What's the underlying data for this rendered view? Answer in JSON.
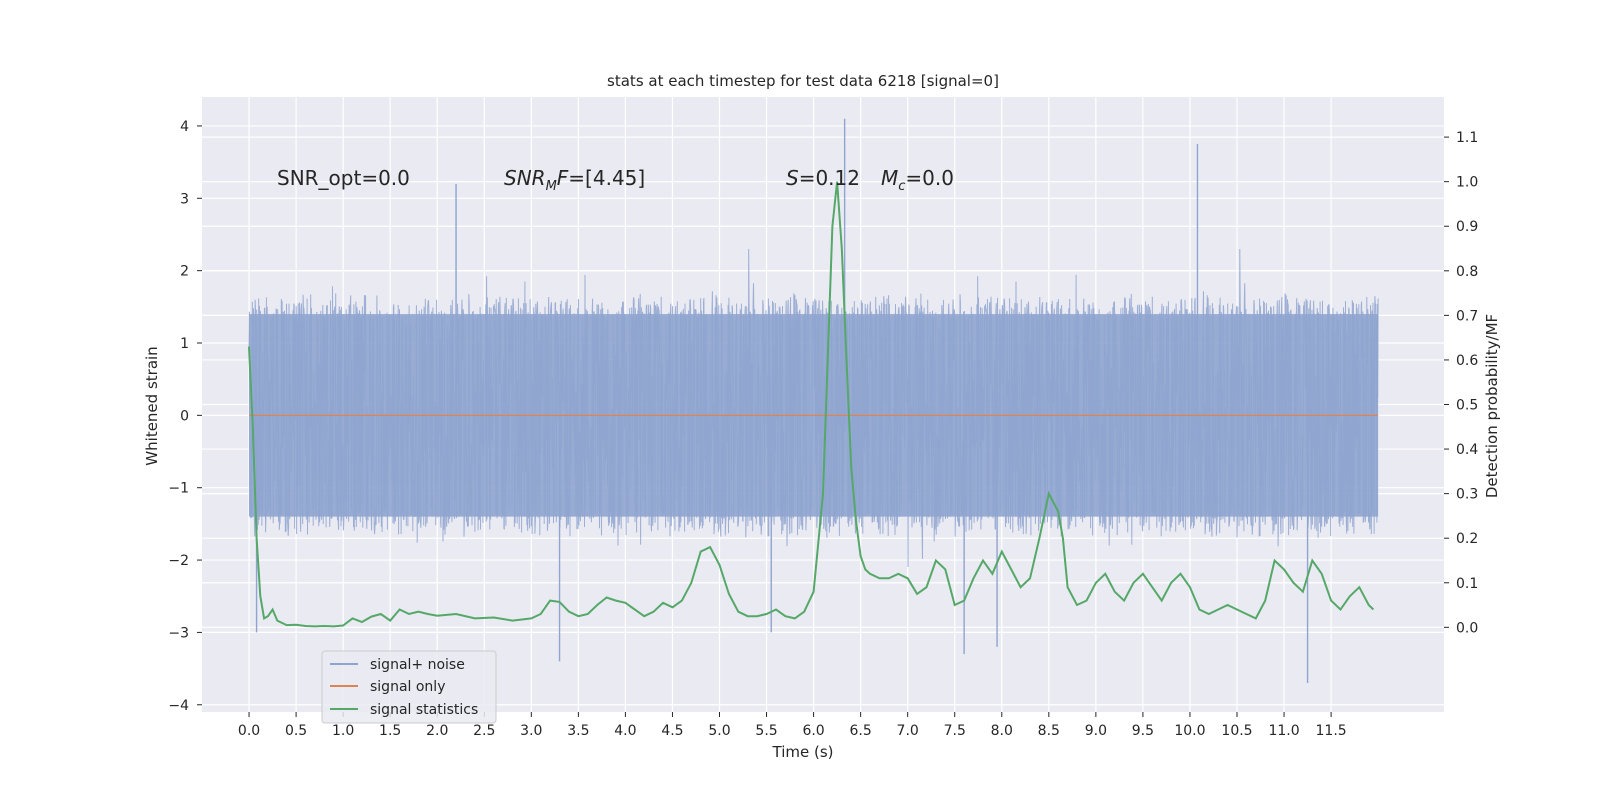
{
  "chart_data": {
    "type": "line",
    "title": "stats at each timestep for test data 6218 [signal=0]",
    "xlabel": "Time (s)",
    "ylabel_left": "Whitened strain",
    "ylabel_right": "Detection probability/MF",
    "xlim": [
      -0.5,
      12.7
    ],
    "ylim_left": [
      -4.1,
      4.4
    ],
    "ylim_right": [
      -0.19,
      1.19
    ],
    "grid": true,
    "background": "#eaeaf2",
    "x_ticks": [
      0.0,
      0.5,
      1.0,
      1.5,
      2.0,
      2.5,
      3.0,
      3.5,
      4.0,
      4.5,
      5.0,
      5.5,
      6.0,
      6.5,
      7.0,
      7.5,
      8.0,
      8.5,
      9.0,
      9.5,
      10.0,
      10.5,
      11.0,
      11.5
    ],
    "x_tick_labels": [
      "0.0",
      "0.5",
      "1.0",
      "1.5",
      "2.0",
      "2.5",
      "3.0",
      "3.5",
      "4.0",
      "4.5",
      "5.0",
      "5.5",
      "6.0",
      "6.5",
      "7.0",
      "7.5",
      "8.0",
      "8.5",
      "9.0",
      "9.5",
      "10.0",
      "10.5",
      "11.0",
      "11.5"
    ],
    "y_left_ticks": [
      4,
      3,
      2,
      1,
      0,
      -1,
      -2,
      -3,
      -4
    ],
    "y_left_tick_labels": [
      "4",
      "3",
      "2",
      "1",
      "0",
      "−1",
      "−2",
      "−3",
      "−4"
    ],
    "y_right_ticks": [
      1.1,
      1.0,
      0.9,
      0.8,
      0.7,
      0.6,
      0.5,
      0.4,
      0.3,
      0.2,
      0.1,
      0.0
    ],
    "y_right_tick_labels": [
      "1.1",
      "1.0",
      "0.9",
      "0.8",
      "0.7",
      "0.6",
      "0.5",
      "0.4",
      "0.3",
      "0.2",
      "0.1",
      "0.0"
    ],
    "series": [
      {
        "name": "signal+ noise",
        "color": "#8fa5cf",
        "axis": "left",
        "kind": "noise-band",
        "x_range": [
          0.0,
          12.0
        ],
        "core_range": [
          -1.4,
          1.4
        ],
        "notable_peaks": [
          [
            0.08,
            -3.0
          ],
          [
            2.2,
            3.2
          ],
          [
            3.3,
            -3.4
          ],
          [
            5.55,
            -3.0
          ],
          [
            6.33,
            4.1
          ],
          [
            7.6,
            -3.3
          ],
          [
            7.95,
            -3.2
          ],
          [
            10.08,
            3.75
          ],
          [
            11.25,
            -3.7
          ]
        ]
      },
      {
        "name": "signal only",
        "color": "#dd8452",
        "axis": "left",
        "x": [
          0.0,
          12.0
        ],
        "y": [
          0.0,
          0.0
        ]
      },
      {
        "name": "signal statistics",
        "color": "#55a868",
        "axis": "right",
        "x": [
          0.0,
          0.04,
          0.08,
          0.12,
          0.16,
          0.2,
          0.25,
          0.3,
          0.4,
          0.5,
          0.6,
          0.7,
          0.8,
          0.9,
          1.0,
          1.1,
          1.2,
          1.3,
          1.4,
          1.5,
          1.6,
          1.7,
          1.8,
          1.9,
          2.0,
          2.2,
          2.4,
          2.6,
          2.8,
          3.0,
          3.1,
          3.2,
          3.3,
          3.4,
          3.5,
          3.6,
          3.7,
          3.8,
          3.9,
          4.0,
          4.1,
          4.2,
          4.3,
          4.4,
          4.5,
          4.6,
          4.7,
          4.8,
          4.9,
          5.0,
          5.1,
          5.2,
          5.3,
          5.4,
          5.5,
          5.6,
          5.7,
          5.8,
          5.9,
          6.0,
          6.1,
          6.15,
          6.2,
          6.25,
          6.3,
          6.35,
          6.4,
          6.45,
          6.5,
          6.55,
          6.6,
          6.7,
          6.8,
          6.9,
          7.0,
          7.1,
          7.2,
          7.3,
          7.4,
          7.5,
          7.6,
          7.7,
          7.8,
          7.9,
          8.0,
          8.1,
          8.2,
          8.3,
          8.4,
          8.5,
          8.6,
          8.65,
          8.7,
          8.8,
          8.9,
          9.0,
          9.1,
          9.2,
          9.3,
          9.4,
          9.5,
          9.6,
          9.7,
          9.8,
          9.9,
          10.0,
          10.1,
          10.2,
          10.3,
          10.4,
          10.5,
          10.6,
          10.7,
          10.8,
          10.9,
          11.0,
          11.1,
          11.2,
          11.3,
          11.4,
          11.5,
          11.6,
          11.7,
          11.8,
          11.9,
          11.95
        ],
        "y": [
          0.63,
          0.45,
          0.2,
          0.07,
          0.02,
          0.025,
          0.04,
          0.015,
          0.005,
          0.006,
          0.003,
          0.002,
          0.003,
          0.002,
          0.004,
          0.02,
          0.012,
          0.024,
          0.03,
          0.015,
          0.04,
          0.03,
          0.035,
          0.03,
          0.026,
          0.03,
          0.02,
          0.022,
          0.015,
          0.02,
          0.03,
          0.06,
          0.057,
          0.035,
          0.025,
          0.03,
          0.05,
          0.067,
          0.06,
          0.055,
          0.04,
          0.025,
          0.035,
          0.055,
          0.045,
          0.06,
          0.1,
          0.17,
          0.18,
          0.14,
          0.075,
          0.035,
          0.025,
          0.025,
          0.03,
          0.04,
          0.025,
          0.02,
          0.035,
          0.08,
          0.3,
          0.6,
          0.9,
          1.0,
          0.85,
          0.6,
          0.36,
          0.24,
          0.16,
          0.13,
          0.12,
          0.11,
          0.11,
          0.12,
          0.11,
          0.075,
          0.09,
          0.15,
          0.13,
          0.05,
          0.06,
          0.11,
          0.15,
          0.12,
          0.17,
          0.13,
          0.09,
          0.11,
          0.2,
          0.3,
          0.26,
          0.2,
          0.09,
          0.05,
          0.06,
          0.1,
          0.12,
          0.08,
          0.06,
          0.1,
          0.12,
          0.09,
          0.06,
          0.1,
          0.12,
          0.09,
          0.04,
          0.03,
          0.04,
          0.05,
          0.04,
          0.03,
          0.02,
          0.06,
          0.15,
          0.13,
          0.1,
          0.08,
          0.15,
          0.12,
          0.06,
          0.04,
          0.07,
          0.09,
          0.05,
          0.04
        ]
      }
    ],
    "annotations": {
      "snr_opt": "SNR_opt=0.0",
      "snr_mf_sym": "SNR",
      "snr_mf_sub": "M",
      "snr_mf_f": "F",
      "snr_mf_val": "=[4.45]",
      "s_sym": "S",
      "s_val": "=0.12",
      "mc_sym": "M",
      "mc_sub": "c",
      "mc_val": "=0.0"
    },
    "legend": {
      "position": "lower-left",
      "entries": [
        "signal+ noise",
        "signal only",
        "signal statistics"
      ]
    }
  }
}
